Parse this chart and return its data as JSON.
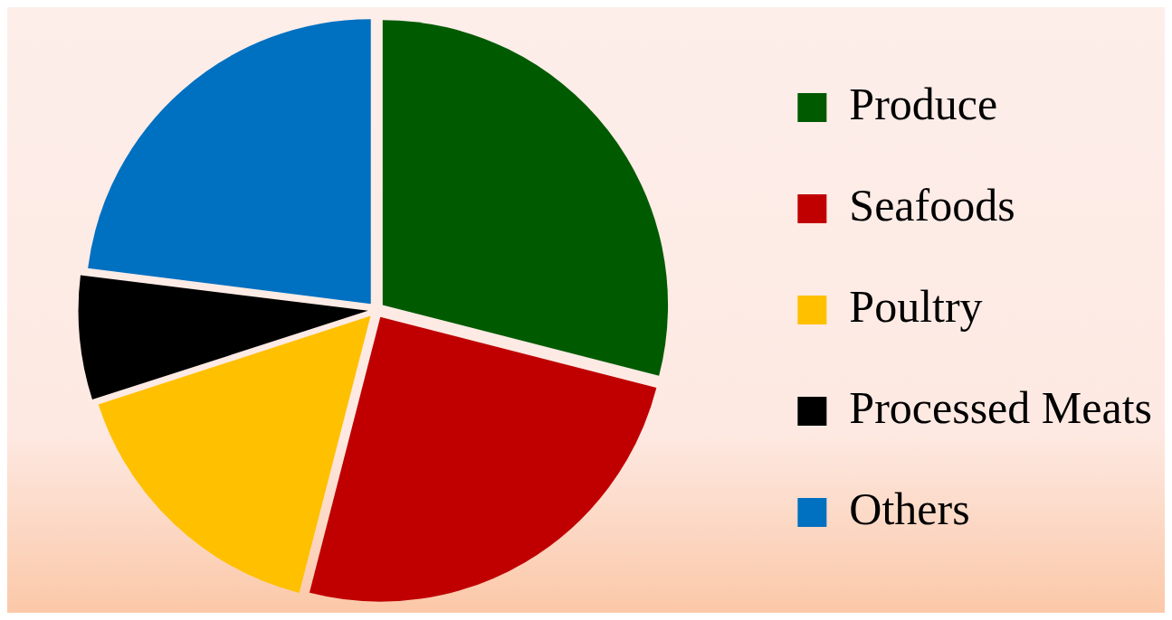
{
  "chart_data": {
    "type": "pie",
    "categories": [
      "Produce",
      "Seafoods",
      "Poultry",
      "Processed Meats",
      "Others"
    ],
    "values": [
      29,
      25,
      16,
      7,
      23
    ],
    "colors": [
      "#005a00",
      "#c00000",
      "#ffc000",
      "#000000",
      "#0070c0"
    ],
    "legend": "right"
  }
}
